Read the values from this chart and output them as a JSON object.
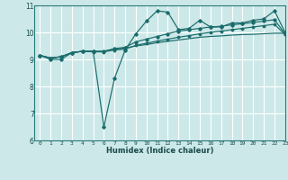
{
  "xlabel": "Humidex (Indice chaleur)",
  "xlim": [
    -0.5,
    23
  ],
  "ylim": [
    6,
    11
  ],
  "yticks": [
    6,
    7,
    8,
    9,
    10,
    11
  ],
  "xticks": [
    0,
    1,
    2,
    3,
    4,
    5,
    6,
    7,
    8,
    9,
    10,
    11,
    12,
    13,
    14,
    15,
    16,
    17,
    18,
    19,
    20,
    21,
    22,
    23
  ],
  "bg_color": "#cce8e8",
  "grid_color": "#ffffff",
  "line_color": "#1a6b6b",
  "line1": [
    9.15,
    9.05,
    9.1,
    9.25,
    9.3,
    9.3,
    9.3,
    9.38,
    9.42,
    9.5,
    9.55,
    9.62,
    9.67,
    9.72,
    9.77,
    9.82,
    9.85,
    9.87,
    9.9,
    9.92,
    9.93,
    9.95,
    9.97,
    9.97
  ],
  "line2": [
    9.15,
    9.0,
    9.0,
    9.25,
    9.3,
    9.3,
    6.5,
    8.3,
    9.35,
    9.95,
    10.42,
    10.8,
    10.75,
    10.1,
    10.15,
    10.45,
    10.2,
    10.2,
    10.35,
    10.35,
    10.45,
    10.5,
    10.8,
    10.0
  ],
  "line3": [
    9.15,
    9.05,
    9.1,
    9.25,
    9.3,
    9.3,
    9.3,
    9.4,
    9.45,
    9.65,
    9.75,
    9.85,
    9.95,
    10.05,
    10.1,
    10.15,
    10.2,
    10.23,
    10.28,
    10.32,
    10.37,
    10.42,
    10.47,
    9.95
  ],
  "line4": [
    9.15,
    9.05,
    9.1,
    9.25,
    9.3,
    9.28,
    9.28,
    9.35,
    9.38,
    9.52,
    9.6,
    9.68,
    9.75,
    9.82,
    9.88,
    9.95,
    10.0,
    10.05,
    10.1,
    10.15,
    10.2,
    10.25,
    10.3,
    9.92
  ]
}
